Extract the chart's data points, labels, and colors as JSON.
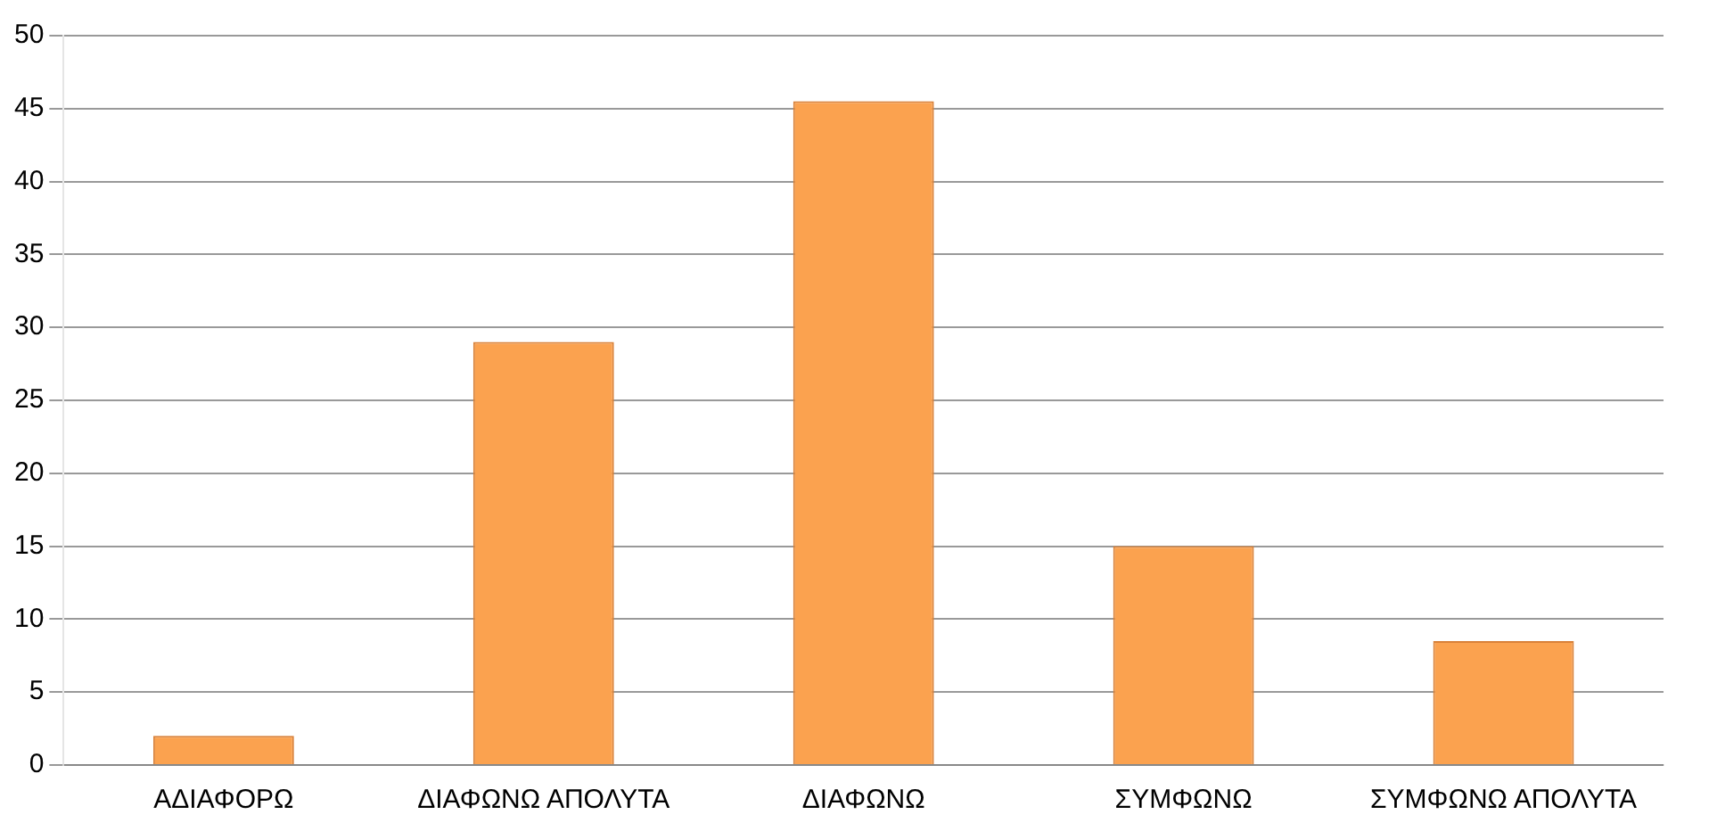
{
  "chart_data": {
    "type": "bar",
    "categories": [
      "ΑΔΙΑΦΟΡΩ",
      "ΔΙΑΦΩΝΩ ΑΠΟΛΥΤΑ",
      "ΔΙΑΦΩΝΩ",
      "ΣΥΜΦΩΝΩ",
      "ΣΥΜΦΩΝΩ ΑΠΟΛΥΤΑ"
    ],
    "values": [
      2,
      29,
      45.5,
      15,
      8.5
    ],
    "color": "#fba24f",
    "ylim": [
      0,
      50
    ],
    "yticks": [
      0,
      5,
      10,
      15,
      20,
      25,
      30,
      35,
      40,
      45,
      50
    ],
    "grid": "y",
    "legend": false
  }
}
